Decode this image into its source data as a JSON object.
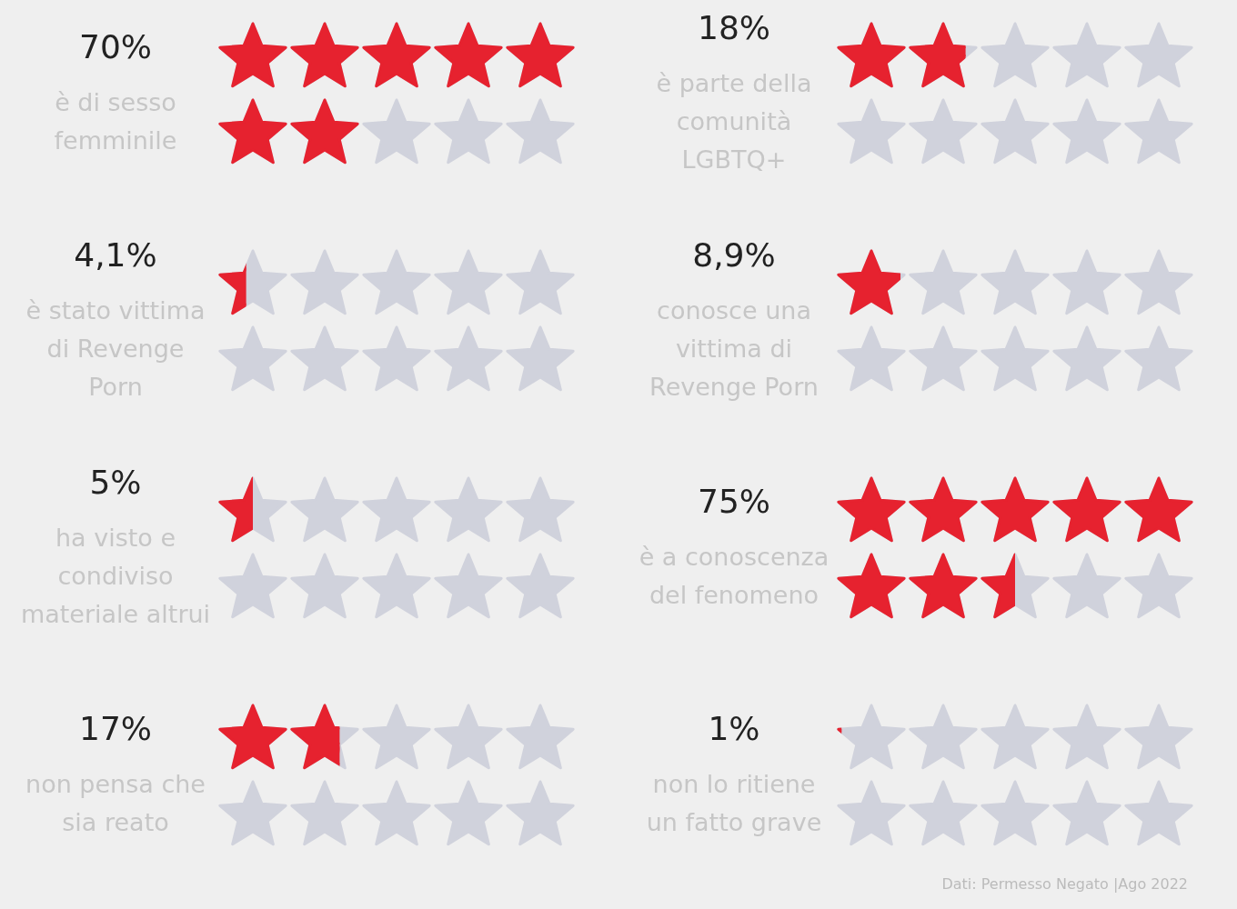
{
  "chart_data": {
    "type": "other",
    "categories": [
      "è di sesso\nfemminile",
      "è parte della\ncomunità\nLGBTQ+",
      "è stato vittima\ndi Revenge\nPorn",
      "conosce una\nvittima di\nRevenge Porn",
      "ha visto e\ncondiviso\nmateriale altrui",
      "è a conoscenza\ndel fenomeno",
      "non pensa che\nsia reato",
      "non lo ritiene\nun fatto grave"
    ],
    "values": [
      70,
      18,
      4.1,
      8.9,
      5,
      75,
      17,
      1
    ],
    "value_labels": [
      "70%",
      "18%",
      "4,1%",
      "8,9%",
      "5%",
      "75%",
      "17%",
      "1%"
    ],
    "color": "#e6222f",
    "annotations": [
      "Dati: Permesso Negato |Ago 2022"
    ]
  }
}
